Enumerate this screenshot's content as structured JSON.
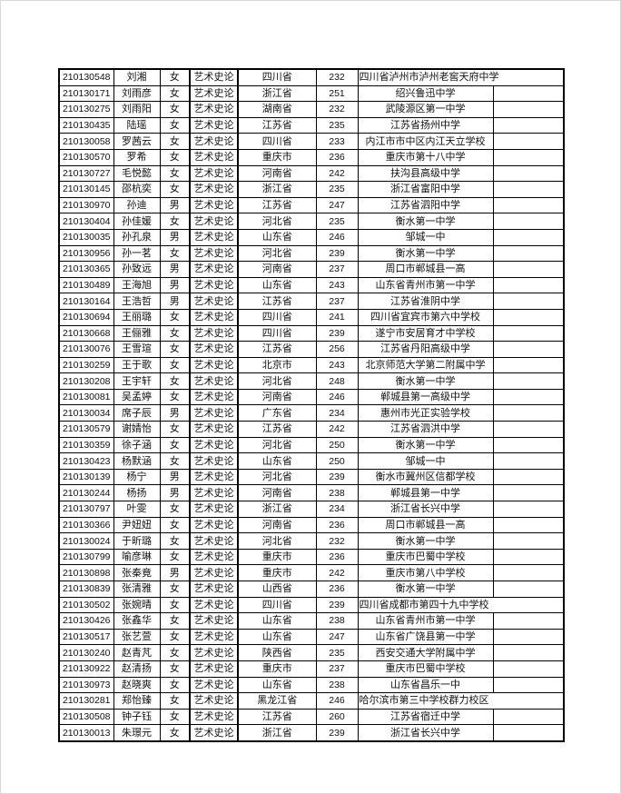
{
  "rows": [
    {
      "id": "210130548",
      "name": "刘湘",
      "gender": "女",
      "major": "艺术史论",
      "province": "四川省",
      "score": "232",
      "school": "四川省泸州市泸州老窖天府中学"
    },
    {
      "id": "210130171",
      "name": "刘雨彦",
      "gender": "女",
      "major": "艺术史论",
      "province": "浙江省",
      "score": "251",
      "school": "绍兴鲁迅中学"
    },
    {
      "id": "210130275",
      "name": "刘雨阳",
      "gender": "女",
      "major": "艺术史论",
      "province": "湖南省",
      "score": "232",
      "school": "武陵源区第一中学"
    },
    {
      "id": "210130435",
      "name": "陆瑶",
      "gender": "女",
      "major": "艺术史论",
      "province": "江苏省",
      "score": "235",
      "school": "江苏省扬州中学"
    },
    {
      "id": "210130058",
      "name": "罗茜云",
      "gender": "女",
      "major": "艺术史论",
      "province": "四川省",
      "score": "233",
      "school": "内江市市中区内江天立学校"
    },
    {
      "id": "210130570",
      "name": "罗希",
      "gender": "女",
      "major": "艺术史论",
      "province": "重庆市",
      "score": "236",
      "school": "重庆市第十八中学"
    },
    {
      "id": "210130727",
      "name": "毛悦懿",
      "gender": "女",
      "major": "艺术史论",
      "province": "河南省",
      "score": "242",
      "school": "扶沟县高级中学"
    },
    {
      "id": "210130145",
      "name": "邵杭奕",
      "gender": "女",
      "major": "艺术史论",
      "province": "浙江省",
      "score": "235",
      "school": "浙江省富阳中学"
    },
    {
      "id": "210130970",
      "name": "孙迪",
      "gender": "男",
      "major": "艺术史论",
      "province": "江苏省",
      "score": "247",
      "school": "江苏省泗阳中学"
    },
    {
      "id": "210130404",
      "name": "孙佳媛",
      "gender": "女",
      "major": "艺术史论",
      "province": "河北省",
      "score": "235",
      "school": "衡水第一中学"
    },
    {
      "id": "210130035",
      "name": "孙孔泉",
      "gender": "男",
      "major": "艺术史论",
      "province": "山东省",
      "score": "246",
      "school": "邹城一中"
    },
    {
      "id": "210130956",
      "name": "孙一茗",
      "gender": "女",
      "major": "艺术史论",
      "province": "河北省",
      "score": "239",
      "school": "衡水第一中学"
    },
    {
      "id": "210130365",
      "name": "孙致远",
      "gender": "男",
      "major": "艺术史论",
      "province": "河南省",
      "score": "237",
      "school": "周口市郸城县一高"
    },
    {
      "id": "210130489",
      "name": "王海旭",
      "gender": "男",
      "major": "艺术史论",
      "province": "山东省",
      "score": "243",
      "school": "山东省青州市第一中学"
    },
    {
      "id": "210130164",
      "name": "王浩哲",
      "gender": "男",
      "major": "艺术史论",
      "province": "江苏省",
      "score": "237",
      "school": "江苏省淮阴中学"
    },
    {
      "id": "210130694",
      "name": "王丽璐",
      "gender": "女",
      "major": "艺术史论",
      "province": "四川省",
      "score": "241",
      "school": "四川省宜宾市第六中学校"
    },
    {
      "id": "210130668",
      "name": "王俪雅",
      "gender": "女",
      "major": "艺术史论",
      "province": "四川省",
      "score": "239",
      "school": "遂宁市安居育才中学校"
    },
    {
      "id": "210130076",
      "name": "王雪瑄",
      "gender": "女",
      "major": "艺术史论",
      "province": "江苏省",
      "score": "256",
      "school": "江苏省丹阳高级中学"
    },
    {
      "id": "210130259",
      "name": "王于歌",
      "gender": "女",
      "major": "艺术史论",
      "province": "北京市",
      "score": "243",
      "school": "北京师范大学第二附属中学"
    },
    {
      "id": "210130208",
      "name": "王宇轩",
      "gender": "女",
      "major": "艺术史论",
      "province": "河北省",
      "score": "248",
      "school": "衡水第一中学"
    },
    {
      "id": "210130081",
      "name": "吴孟婷",
      "gender": "女",
      "major": "艺术史论",
      "province": "河南省",
      "score": "246",
      "school": "郸城县第一高级中学"
    },
    {
      "id": "210130034",
      "name": "席子辰",
      "gender": "男",
      "major": "艺术史论",
      "province": "广东省",
      "score": "234",
      "school": "惠州市光正实验学校"
    },
    {
      "id": "210130579",
      "name": "谢婧怡",
      "gender": "女",
      "major": "艺术史论",
      "province": "江苏省",
      "score": "242",
      "school": "江苏省泗洪中学"
    },
    {
      "id": "210130359",
      "name": "徐子涵",
      "gender": "女",
      "major": "艺术史论",
      "province": "河北省",
      "score": "250",
      "school": "衡水第一中学"
    },
    {
      "id": "210130423",
      "name": "杨默涵",
      "gender": "女",
      "major": "艺术史论",
      "province": "山东省",
      "score": "250",
      "school": "邹城一中"
    },
    {
      "id": "210130139",
      "name": "杨宁",
      "gender": "男",
      "major": "艺术史论",
      "province": "河北省",
      "score": "239",
      "school": "衡水市冀州区信都学校"
    },
    {
      "id": "210130244",
      "name": "杨扬",
      "gender": "男",
      "major": "艺术史论",
      "province": "河南省",
      "score": "238",
      "school": "郸城县第一中学"
    },
    {
      "id": "210130797",
      "name": "叶雯",
      "gender": "女",
      "major": "艺术史论",
      "province": "浙江省",
      "score": "234",
      "school": "浙江省长兴中学"
    },
    {
      "id": "210130366",
      "name": "尹妞妞",
      "gender": "女",
      "major": "艺术史论",
      "province": "河南省",
      "score": "236",
      "school": "周口市郸城县一高"
    },
    {
      "id": "210130024",
      "name": "于昕璐",
      "gender": "女",
      "major": "艺术史论",
      "province": "河北省",
      "score": "232",
      "school": "衡水第一中学"
    },
    {
      "id": "210130799",
      "name": "喻彦琳",
      "gender": "女",
      "major": "艺术史论",
      "province": "重庆市",
      "score": "236",
      "school": "重庆市巴蜀中学校"
    },
    {
      "id": "210130898",
      "name": "张秦竟",
      "gender": "男",
      "major": "艺术史论",
      "province": "重庆市",
      "score": "242",
      "school": "重庆市第八中学校"
    },
    {
      "id": "210130839",
      "name": "张清雅",
      "gender": "女",
      "major": "艺术史论",
      "province": "山西省",
      "score": "236",
      "school": "衡水第一中学"
    },
    {
      "id": "210130502",
      "name": "张婉晴",
      "gender": "女",
      "major": "艺术史论",
      "province": "四川省",
      "score": "239",
      "school": "四川省成都市第四十九中学校"
    },
    {
      "id": "210130426",
      "name": "张鑫华",
      "gender": "女",
      "major": "艺术史论",
      "province": "山东省",
      "score": "238",
      "school": "山东省青州市第一中学"
    },
    {
      "id": "210130517",
      "name": "张艺萱",
      "gender": "女",
      "major": "艺术史论",
      "province": "山东省",
      "score": "247",
      "school": "山东省广饶县第一中学"
    },
    {
      "id": "210130240",
      "name": "赵青芃",
      "gender": "女",
      "major": "艺术史论",
      "province": "陕西省",
      "score": "235",
      "school": "西安交通大学附属中学"
    },
    {
      "id": "210130922",
      "name": "赵清扬",
      "gender": "女",
      "major": "艺术史论",
      "province": "重庆市",
      "score": "237",
      "school": "重庆市巴蜀中学校"
    },
    {
      "id": "210130973",
      "name": "赵晓爽",
      "gender": "女",
      "major": "艺术史论",
      "province": "山东省",
      "score": "238",
      "school": "山东省昌乐一中"
    },
    {
      "id": "210130281",
      "name": "郑怡臻",
      "gender": "女",
      "major": "艺术史论",
      "province": "黑龙江省",
      "score": "246",
      "school": "哈尔滨市第三中学校群力校区"
    },
    {
      "id": "210130508",
      "name": "钟子钰",
      "gender": "女",
      "major": "艺术史论",
      "province": "江苏省",
      "score": "260",
      "school": "江苏省宿迁中学"
    },
    {
      "id": "210130013",
      "name": "朱璟元",
      "gender": "女",
      "major": "艺术史论",
      "province": "浙江省",
      "score": "239",
      "school": "浙江省长兴中学"
    }
  ]
}
